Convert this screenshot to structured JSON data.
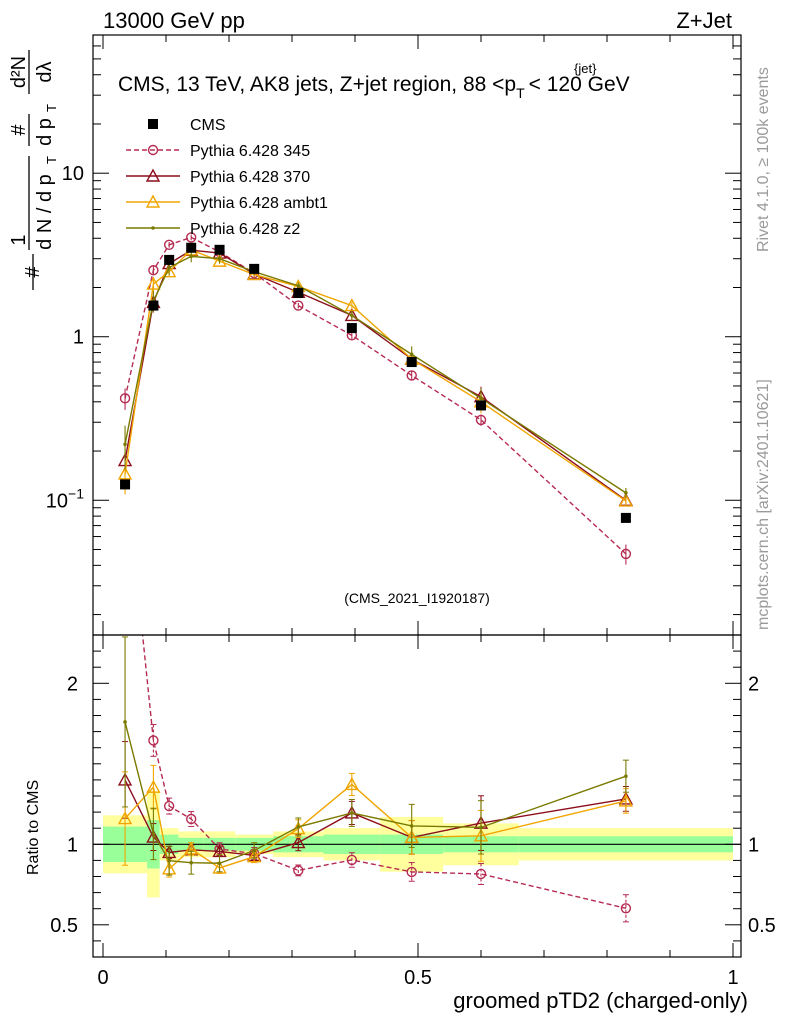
{
  "header": {
    "left": "13000 GeV pp",
    "right": "Z+Jet"
  },
  "side_labels": {
    "rivet": "Rivet 4.1.0, ≥ 100k events",
    "mcplots": "mcplots.cern.ch [arXiv:2401.10621]"
  },
  "chart_data": {
    "type": "line",
    "title_parts": {
      "pre": "CMS, 13 TeV, AK8 jets, Z+jet region, 88 <p",
      "sub": "T",
      "sup": "{jet}",
      "post": "< 120 GeV"
    },
    "watermark": "(CMS_2021_I1920187)",
    "xlabel": "groomed pTD2 (charged-only)",
    "ylabel_parts": {
      "hash": "#",
      "one": "1",
      "dN": "d N / d p",
      "sub": "T",
      "d2N": "d²N",
      "dpT": "d p",
      "dl": "dλ"
    },
    "ratio_ylabel": "Ratio to CMS",
    "xlim": [
      0,
      1
    ],
    "ylim_main": [
      0.015,
      70
    ],
    "ylim_ratio": [
      0.3,
      2.3
    ],
    "x_ticks": [
      0,
      0.5,
      1
    ],
    "x_tick_labels": [
      "0",
      "0.5",
      "1"
    ],
    "y_ticks_main": [
      0.1,
      1,
      10
    ],
    "y_tick_labels_main": {
      "base": "10",
      "exp": "−1",
      "one": "1",
      "ten": "10"
    },
    "y_ticks_ratio": [
      0.5,
      1,
      2
    ],
    "y_tick_labels_ratio": [
      "0.5",
      "1",
      "2"
    ],
    "bins": [
      [
        0.0,
        0.07
      ],
      [
        0.07,
        0.09
      ],
      [
        0.09,
        0.12
      ],
      [
        0.12,
        0.16
      ],
      [
        0.16,
        0.21
      ],
      [
        0.21,
        0.27
      ],
      [
        0.27,
        0.35
      ],
      [
        0.35,
        0.44
      ],
      [
        0.44,
        0.54
      ],
      [
        0.54,
        0.66
      ],
      [
        0.66,
        1.0
      ]
    ],
    "x": [
      0.035,
      0.08,
      0.105,
      0.14,
      0.185,
      0.24,
      0.31,
      0.395,
      0.49,
      0.6,
      0.83
    ],
    "data": {
      "name": "CMS",
      "values": [
        0.125,
        1.55,
        2.95,
        3.5,
        3.4,
        2.6,
        1.85,
        1.13,
        0.7,
        0.38,
        0.078
      ],
      "band_stat": [
        0.11,
        0.15,
        0.06,
        0.04,
        0.04,
        0.04,
        0.05,
        0.06,
        0.06,
        0.05,
        0.05
      ],
      "band_total": [
        0.18,
        0.33,
        0.1,
        0.08,
        0.08,
        0.06,
        0.08,
        0.1,
        0.17,
        0.13,
        0.1
      ]
    },
    "series": [
      {
        "name": "Pythia 6.428 345",
        "color": "#b52b52",
        "marker": "circle",
        "dashed": true,
        "values": [
          0.42,
          2.55,
          3.65,
          4.05,
          3.3,
          2.45,
          1.55,
          1.02,
          0.58,
          0.31,
          0.047
        ],
        "ratio_err": [
          0.15,
          0.06,
          0.04,
          0.04,
          0.04,
          0.04,
          0.04,
          0.05,
          0.07,
          0.08,
          0.14
        ]
      },
      {
        "name": "Pythia 6.428 370",
        "color": "#8c0e1b",
        "marker": "triangle",
        "dashed": false,
        "values": [
          0.175,
          1.62,
          2.8,
          3.38,
          3.25,
          2.42,
          1.87,
          1.35,
          0.73,
          0.43,
          0.1
        ],
        "ratio_err": [
          0.17,
          0.08,
          0.04,
          0.03,
          0.03,
          0.03,
          0.05,
          0.06,
          0.1,
          0.15,
          0.06
        ]
      },
      {
        "name": "Pythia 6.428 ambt1",
        "color": "#f0a500",
        "marker": "triangle",
        "dashed": false,
        "values": [
          0.145,
          2.1,
          2.5,
          3.4,
          2.9,
          2.4,
          2.03,
          1.55,
          0.73,
          0.4,
          0.099
        ],
        "ratio_err": [
          0.25,
          0.1,
          0.06,
          0.04,
          0.04,
          0.04,
          0.05,
          0.05,
          0.1,
          0.15,
          0.06
        ]
      },
      {
        "name": "Pythia 6.428 z2",
        "color": "#7a7a00",
        "marker": "dot",
        "dashed": false,
        "values": [
          0.22,
          1.65,
          2.65,
          3.1,
          3.0,
          2.5,
          2.05,
          1.35,
          0.78,
          0.42,
          0.111
        ],
        "ratio_err": [
          0.3,
          0.15,
          0.1,
          0.08,
          0.06,
          0.05,
          0.05,
          0.07,
          0.12,
          0.15,
          0.07
        ]
      }
    ]
  }
}
